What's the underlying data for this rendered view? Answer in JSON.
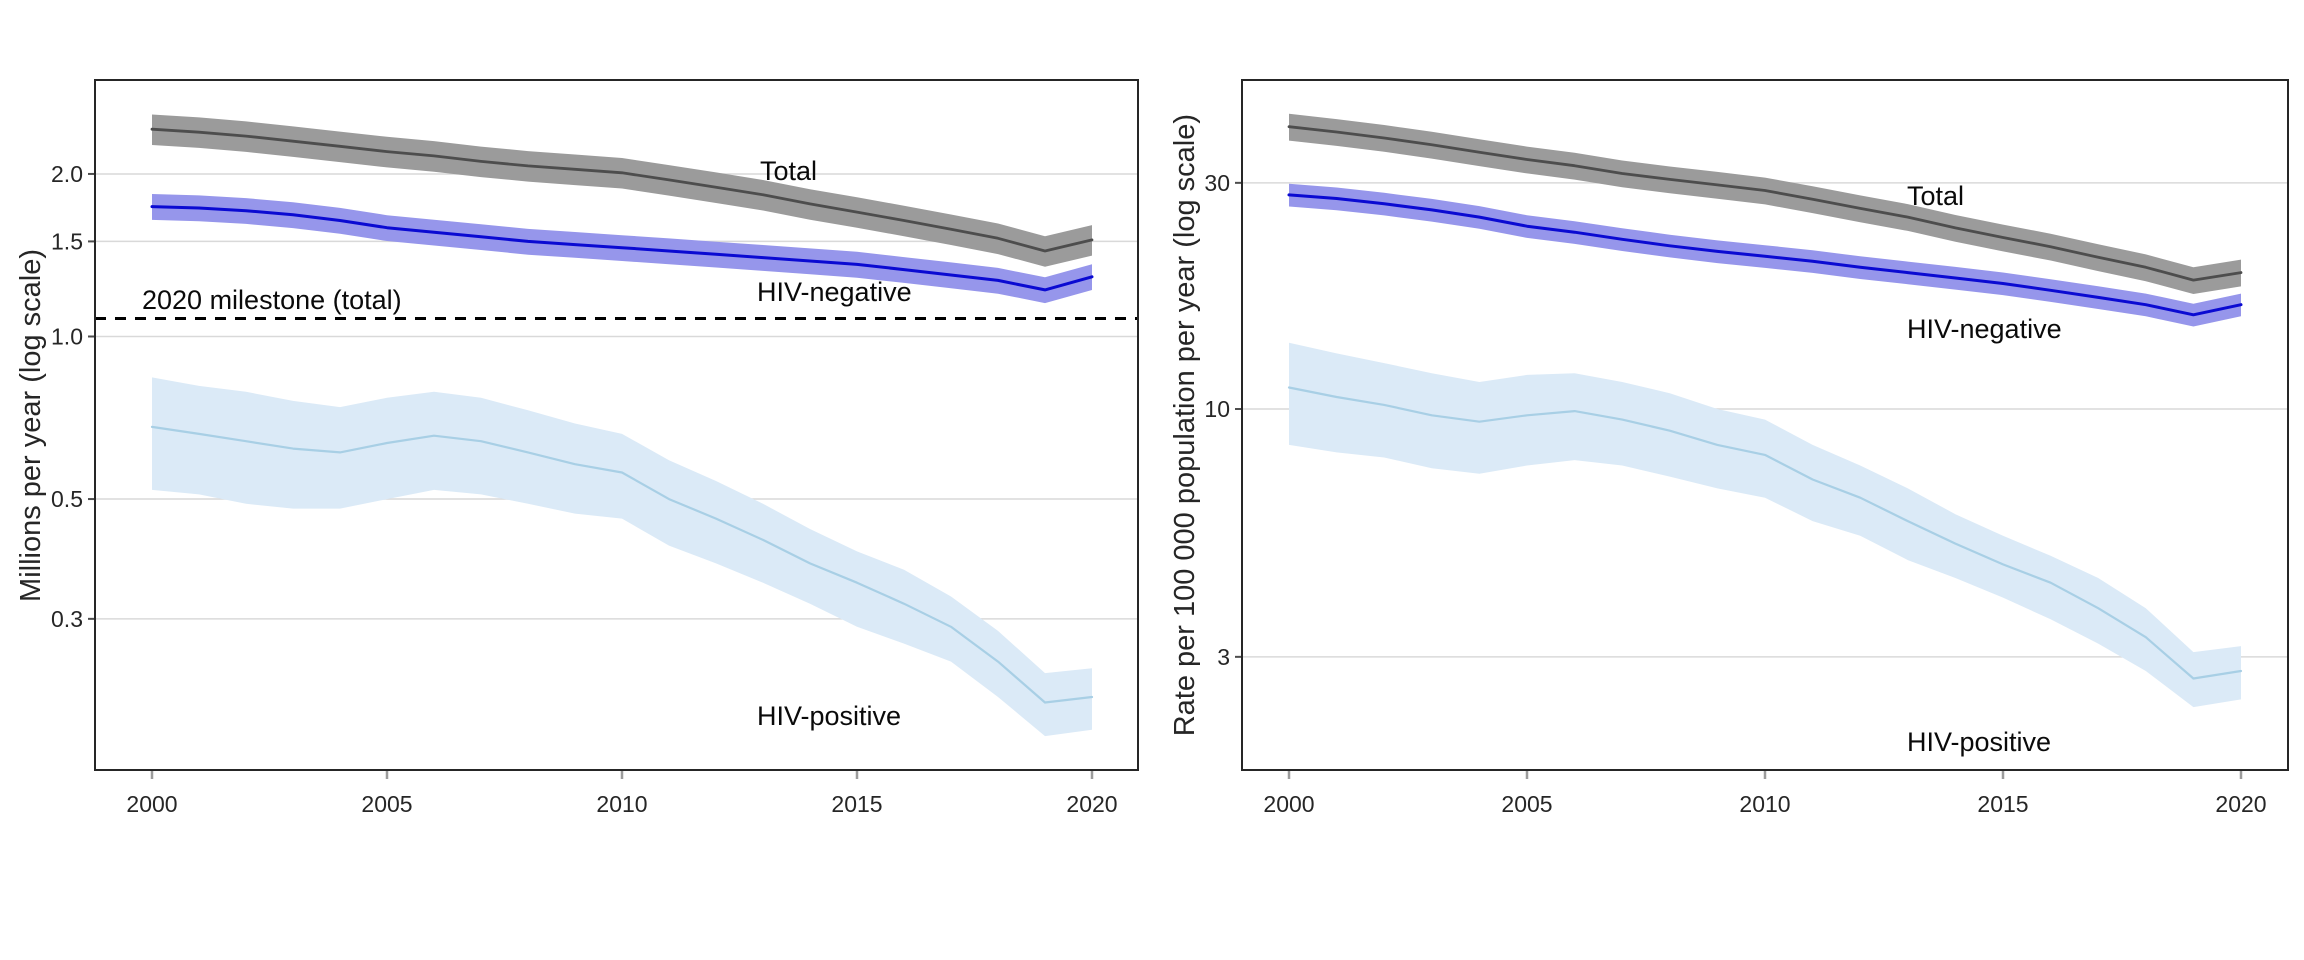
{
  "figure": {
    "type": "dual-panel line chart with uncertainty ribbons",
    "background": "#ffffff"
  },
  "colors": {
    "total_line": "#4d4d4d",
    "total_band": "#9b9b9b",
    "hivneg_line": "#0a0ad2",
    "hivneg_band": "#9696eb",
    "hivpos_line": "#a8cfe5",
    "hivpos_band": "#dbeaf7",
    "gridline": "#d9d9d9",
    "border": "#262626",
    "tick_label": "#262626",
    "x_tick_mark": "#9c9c9c",
    "y_tick_mark": "#4d4d4d",
    "milestone_line": "#000000"
  },
  "chart_data": [
    {
      "type": "line",
      "panel": "deaths",
      "ylabel": "Millions per year (log scale)",
      "xlabel": "",
      "x": [
        2000,
        2001,
        2002,
        2003,
        2004,
        2005,
        2006,
        2007,
        2008,
        2009,
        2010,
        2011,
        2012,
        2013,
        2014,
        2015,
        2016,
        2017,
        2018,
        2019,
        2020
      ],
      "x_ticks": [
        2000,
        2005,
        2010,
        2015,
        2020
      ],
      "y_ticks": [
        {
          "v": 2.0,
          "label": "2.0"
        },
        {
          "v": 1.5,
          "label": "1.5"
        },
        {
          "v": 1.0,
          "label": "1.0"
        },
        {
          "v": 0.5,
          "label": "0.5"
        },
        {
          "v": 0.3,
          "label": "0.3"
        }
      ],
      "ylim": [
        0.16,
        2.95
      ],
      "grid": true,
      "legend_position": "direct labels on chart",
      "series_labels": {
        "total": "Total",
        "hivneg": "HIV-negative",
        "hivpos": "HIV-positive"
      },
      "series": [
        {
          "key": "total",
          "name": "Total",
          "values": [
            2.42,
            2.39,
            2.35,
            2.3,
            2.25,
            2.2,
            2.16,
            2.11,
            2.07,
            2.04,
            2.01,
            1.95,
            1.89,
            1.83,
            1.76,
            1.7,
            1.64,
            1.58,
            1.52,
            1.44,
            1.51
          ],
          "band_frac": 0.065
        },
        {
          "key": "hivneg",
          "name": "HIV-negative",
          "values": [
            1.74,
            1.73,
            1.71,
            1.68,
            1.64,
            1.59,
            1.56,
            1.53,
            1.5,
            1.48,
            1.46,
            1.44,
            1.42,
            1.4,
            1.38,
            1.36,
            1.33,
            1.3,
            1.27,
            1.22,
            1.29
          ],
          "band_frac": 0.055
        },
        {
          "key": "hivpos",
          "name": "HIV-positive",
          "values": [
            0.68,
            0.66,
            0.64,
            0.62,
            0.61,
            0.635,
            0.655,
            0.64,
            0.61,
            0.58,
            0.56,
            0.5,
            0.46,
            0.42,
            0.38,
            0.35,
            0.32,
            0.29,
            0.25,
            0.21,
            0.215
          ],
          "lo": [
            0.52,
            0.51,
            0.49,
            0.48,
            0.48,
            0.5,
            0.52,
            0.51,
            0.49,
            0.47,
            0.46,
            0.41,
            0.38,
            0.35,
            0.32,
            0.29,
            0.27,
            0.25,
            0.215,
            0.182,
            0.187
          ],
          "hi": [
            0.84,
            0.81,
            0.79,
            0.76,
            0.74,
            0.77,
            0.79,
            0.77,
            0.73,
            0.69,
            0.66,
            0.59,
            0.54,
            0.49,
            0.44,
            0.4,
            0.37,
            0.33,
            0.285,
            0.238,
            0.243
          ]
        }
      ],
      "milestone": {
        "value": 1.08,
        "label": "2020 milestone (total)",
        "style": "dashed"
      }
    },
    {
      "type": "line",
      "panel": "rate",
      "ylabel": "Rate per 100 000 population per year (log scale)",
      "xlabel": "",
      "x": [
        2000,
        2001,
        2002,
        2003,
        2004,
        2005,
        2006,
        2007,
        2008,
        2009,
        2010,
        2011,
        2012,
        2013,
        2014,
        2015,
        2016,
        2017,
        2018,
        2019,
        2020
      ],
      "x_ticks": [
        2000,
        2005,
        2010,
        2015,
        2020
      ],
      "y_ticks": [
        {
          "v": 30,
          "label": "30"
        },
        {
          "v": 10,
          "label": "10"
        },
        {
          "v": 3,
          "label": "3"
        }
      ],
      "ylim": [
        1.7,
        49
      ],
      "grid": true,
      "legend_position": "direct labels on chart",
      "series_labels": {
        "total": "Total",
        "hivneg": "HIV-negative",
        "hivpos": "HIV-positive"
      },
      "series": [
        {
          "key": "total",
          "name": "Total",
          "values": [
            39.4,
            38.4,
            37.3,
            36.1,
            34.8,
            33.6,
            32.6,
            31.4,
            30.5,
            29.7,
            28.9,
            27.7,
            26.5,
            25.4,
            24.1,
            23.0,
            22.0,
            20.9,
            19.9,
            18.7,
            19.4
          ],
          "band_frac": 0.065
        },
        {
          "key": "hivneg",
          "name": "HIV-negative",
          "values": [
            28.3,
            27.8,
            27.1,
            26.3,
            25.4,
            24.3,
            23.6,
            22.8,
            22.1,
            21.5,
            21.0,
            20.5,
            19.9,
            19.4,
            18.9,
            18.4,
            17.8,
            17.2,
            16.6,
            15.8,
            16.6
          ],
          "band_frac": 0.055
        },
        {
          "key": "hivpos",
          "name": "HIV-positive",
          "values": [
            11.1,
            10.6,
            10.2,
            9.7,
            9.4,
            9.7,
            9.9,
            9.5,
            9.0,
            8.4,
            8.0,
            7.1,
            6.5,
            5.8,
            5.2,
            4.7,
            4.3,
            3.8,
            3.3,
            2.7,
            2.8
          ],
          "lo": [
            8.4,
            8.1,
            7.9,
            7.5,
            7.3,
            7.6,
            7.8,
            7.6,
            7.2,
            6.8,
            6.5,
            5.8,
            5.4,
            4.8,
            4.4,
            4.0,
            3.6,
            3.2,
            2.8,
            2.35,
            2.44
          ],
          "hi": [
            13.8,
            13.1,
            12.5,
            11.9,
            11.4,
            11.8,
            11.9,
            11.4,
            10.8,
            10.0,
            9.5,
            8.4,
            7.6,
            6.8,
            6.0,
            5.4,
            4.9,
            4.4,
            3.8,
            3.07,
            3.16
          ]
        }
      ]
    }
  ]
}
